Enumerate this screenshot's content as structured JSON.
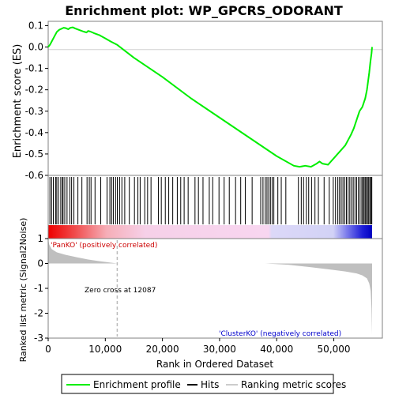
{
  "chart_data": {
    "type": "line",
    "title": "Enrichment plot: WP_GPCRS_ODORANT",
    "top_panel": {
      "ylabel": "Enrichment score (ES)",
      "ylim": [
        -0.6,
        0.12
      ],
      "yticks": [
        0.1,
        0.0,
        -0.1,
        -0.2,
        -0.3,
        -0.4,
        -0.5,
        -0.6
      ],
      "ytick_labels": [
        "0.1",
        "0.0",
        "-0.1",
        "-0.2",
        "-0.3",
        "-0.4",
        "-0.5",
        "-0.6"
      ],
      "series_name": "Enrichment profile",
      "color": "#00ee00",
      "x": [
        0,
        300,
        700,
        1100,
        1500,
        1900,
        2300,
        2700,
        3100,
        3500,
        3900,
        4300,
        4700,
        5200,
        5700,
        6200,
        6700,
        7000,
        7400,
        8000,
        9000,
        10000,
        11000,
        12087,
        15000,
        20000,
        25000,
        30000,
        35000,
        40000,
        43000,
        44000,
        45000,
        46000,
        47000,
        47500,
        48000,
        49000,
        49500,
        50000,
        51000,
        52000,
        53000,
        53500,
        54000,
        54500,
        55000,
        55500,
        55800,
        56000,
        56200,
        56400,
        56600,
        56700
      ],
      "y": [
        0.0,
        0.01,
        0.03,
        0.05,
        0.07,
        0.08,
        0.085,
        0.09,
        0.088,
        0.083,
        0.09,
        0.092,
        0.087,
        0.082,
        0.077,
        0.072,
        0.068,
        0.075,
        0.072,
        0.065,
        0.055,
        0.04,
        0.025,
        0.01,
        -0.05,
        -0.14,
        -0.24,
        -0.33,
        -0.42,
        -0.51,
        -0.555,
        -0.56,
        -0.555,
        -0.56,
        -0.545,
        -0.535,
        -0.545,
        -0.55,
        -0.535,
        -0.52,
        -0.49,
        -0.46,
        -0.41,
        -0.38,
        -0.34,
        -0.3,
        -0.28,
        -0.24,
        -0.2,
        -0.16,
        -0.12,
        -0.07,
        -0.03,
        0.0
      ]
    },
    "hits_panel": {
      "series_name": "Hits",
      "hit_positions": [
        300,
        600,
        900,
        1300,
        1500,
        1800,
        2200,
        2500,
        2600,
        2900,
        3300,
        3800,
        4100,
        4500,
        5200,
        5900,
        6800,
        7200,
        7500,
        8200,
        9200,
        10300,
        10800,
        11100,
        11400,
        11800,
        12100,
        12500,
        12900,
        13400,
        14200,
        15100,
        15700,
        16100,
        16900,
        17400,
        18000,
        19300,
        19800,
        20500,
        21100,
        21800,
        22600,
        23200,
        23800,
        24500,
        25700,
        26300,
        27100,
        28200,
        28800,
        29900,
        30800,
        31700,
        32800,
        33700,
        34500,
        35700,
        37200,
        37600,
        38000,
        38300,
        38600,
        38900,
        39200,
        39500,
        40200,
        40800,
        41600,
        43800,
        44300,
        44700,
        45200,
        45600,
        46100,
        46700,
        47300,
        48300,
        49200,
        49900,
        50300,
        50700,
        51000,
        51300,
        51600,
        51900,
        52200,
        52500,
        52800,
        53100,
        53400,
        53700,
        54000,
        54300,
        54600,
        54900,
        55100,
        55300,
        55500,
        55700,
        55900,
        56100,
        56300,
        56500,
        56650
      ]
    },
    "ranked_panel": {
      "ylabel": "Ranked list metric (Signal2Noise)",
      "ylim": [
        -3.0,
        1.0
      ],
      "yticks": [
        1,
        0,
        -1,
        -2,
        -3
      ],
      "ytick_labels": [
        "1",
        "0",
        "-1",
        "-2",
        "-3"
      ],
      "series_name": "Ranking metric scores",
      "x": [
        0,
        200,
        600,
        1500,
        3000,
        5000,
        7000,
        9000,
        11000,
        12087,
        20000,
        38000,
        42000,
        46000,
        50000,
        52000,
        54000,
        55000,
        55800,
        56200,
        56450,
        56600,
        56700
      ],
      "y": [
        0.95,
        0.75,
        0.58,
        0.45,
        0.35,
        0.25,
        0.16,
        0.09,
        0.03,
        0.0,
        0.0,
        0.0,
        -0.05,
        -0.15,
        -0.26,
        -0.32,
        -0.4,
        -0.48,
        -0.6,
        -0.8,
        -1.1,
        -1.8,
        -2.85
      ],
      "pos_label": "'PanKO' (positively correlated)",
      "neg_label": "'ClusterKO' (negatively correlated)",
      "zero_cross_label": "Zero cross at 12087",
      "zero_cross": 12087
    },
    "xlabel": "Rank in Ordered Dataset",
    "xlim": [
      0,
      56700
    ],
    "xticks": [
      0,
      10000,
      20000,
      30000,
      40000,
      50000
    ],
    "xtick_labels": [
      "0",
      "10,000",
      "20,000",
      "30,000",
      "40,000",
      "50,000"
    ],
    "legend": {
      "placement": "bottom",
      "entries": [
        "Enrichment profile",
        "Hits",
        "Ranking metric scores"
      ]
    },
    "colors": {
      "profile": "#00ee00",
      "hits": "#000000",
      "metric_fill": "#bfbfbf",
      "pos_label": "#cc0000",
      "neg_label": "#0000cc",
      "zero_cross_line": "#bbbbbb",
      "heat_positive": "#ee0000",
      "heat_negative": "#0000cc"
    }
  }
}
